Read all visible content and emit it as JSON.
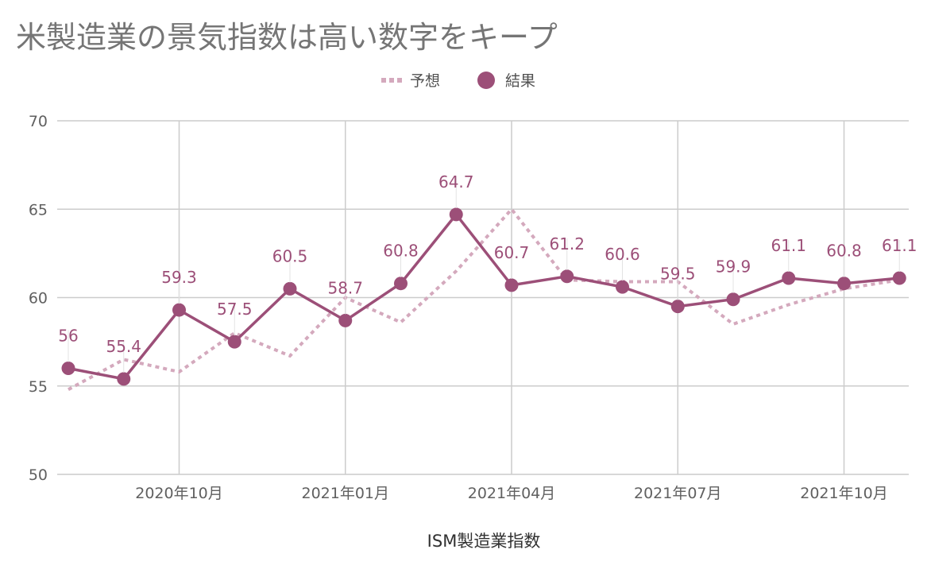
{
  "chart_data": {
    "type": "line",
    "title": "米製造業の景気指数は高い数字をキープ",
    "xlabel": "ISM製造業指数",
    "ylabel": "",
    "ylim": [
      50,
      70
    ],
    "yticks": [
      50,
      55,
      60,
      65,
      70
    ],
    "x": [
      "2020-08",
      "2020-09",
      "2020-10",
      "2020-11",
      "2020-12",
      "2021-01",
      "2021-02",
      "2021-03",
      "2021-04",
      "2021-05",
      "2021-06",
      "2021-07",
      "2021-08",
      "2021-09",
      "2021-10",
      "2021-11"
    ],
    "xticks": [
      {
        "x": "2020-10",
        "label": "2020年10月"
      },
      {
        "x": "2021-01",
        "label": "2021年01月"
      },
      {
        "x": "2021-04",
        "label": "2021年04月"
      },
      {
        "x": "2021-07",
        "label": "2021年07月"
      },
      {
        "x": "2021-10",
        "label": "2021年10月"
      }
    ],
    "grid": true,
    "legend_position": "top-center",
    "series": [
      {
        "name": "予想",
        "style": "dotted",
        "color": "#d4a9bd",
        "values": [
          54.8,
          56.5,
          55.8,
          58.0,
          56.7,
          60.0,
          58.6,
          61.5,
          65.0,
          61.0,
          60.9,
          60.9,
          58.5,
          59.6,
          60.5,
          61.0
        ]
      },
      {
        "name": "結果",
        "style": "solid-markers",
        "color": "#9c4f78",
        "values": [
          56,
          55.4,
          59.3,
          57.5,
          60.5,
          58.7,
          60.8,
          64.7,
          60.7,
          61.2,
          60.6,
          59.5,
          59.9,
          61.1,
          60.8,
          61.1
        ],
        "data_labels": [
          "56",
          "55.4",
          "59.3",
          "57.5",
          "60.5",
          "58.7",
          "60.8",
          "64.7",
          "60.7",
          "61.2",
          "60.6",
          "59.5",
          "59.9",
          "61.1",
          "60.8",
          "61.1"
        ]
      }
    ]
  }
}
